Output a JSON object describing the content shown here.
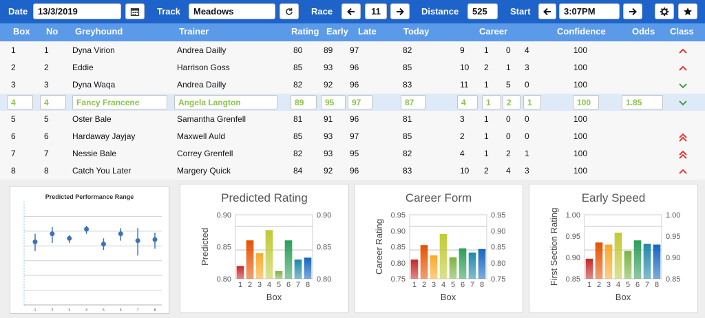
{
  "toolbar": {
    "date_label": "Date",
    "date_value": "13/3/2019",
    "track_label": "Track",
    "track_value": "Meadows",
    "race_label": "Race",
    "race_value": "11",
    "distance_label": "Distance",
    "distance_value": "525",
    "start_label": "Start",
    "start_value": "3:07PM",
    "icons": [
      "calendar-icon",
      "refresh-icon",
      "arrow-left-icon",
      "arrow-right-icon",
      "gear-icon",
      "star-icon"
    ]
  },
  "table": {
    "headers": {
      "box": "Box",
      "no": "No",
      "greyhound": "Greyhound",
      "trainer": "Trainer",
      "rating": "Rating",
      "early": "Early",
      "late": "Late",
      "today": "Today",
      "career": "Career",
      "confidence": "Confidence",
      "odds": "Odds",
      "class": "Class"
    },
    "rows": [
      {
        "box": "1",
        "no": "1",
        "greyhound": "Dyna Virion",
        "trainer": "Andrea Dailly",
        "rating": "80",
        "early": "89",
        "late": "97",
        "today": "82",
        "c1": "9",
        "c2": "1",
        "c3": "0",
        "c4": "4",
        "confidence": "100",
        "odds": "",
        "cls": "up"
      },
      {
        "box": "2",
        "no": "2",
        "greyhound": "Eddie",
        "trainer": "Harrison Goss",
        "rating": "85",
        "early": "93",
        "late": "96",
        "today": "85",
        "c1": "10",
        "c2": "2",
        "c3": "1",
        "c4": "3",
        "confidence": "100",
        "odds": "",
        "cls": "up"
      },
      {
        "box": "3",
        "no": "3",
        "greyhound": "Dyna Waqa",
        "trainer": "Andrea Dailly",
        "rating": "82",
        "early": "92",
        "late": "96",
        "today": "83",
        "c1": "11",
        "c2": "1",
        "c3": "5",
        "c4": "0",
        "confidence": "100",
        "odds": "",
        "cls": "down"
      },
      {
        "box": "4",
        "no": "4",
        "greyhound": "Fancy Francene",
        "trainer": "Angela Langton",
        "rating": "89",
        "early": "95",
        "late": "97",
        "today": "87",
        "c1": "4",
        "c2": "1",
        "c3": "2",
        "c4": "1",
        "confidence": "100",
        "odds": "1.85",
        "cls": "down"
      },
      {
        "box": "5",
        "no": "5",
        "greyhound": "Oster Bale",
        "trainer": "Samantha Grenfell",
        "rating": "81",
        "early": "91",
        "late": "96",
        "today": "81",
        "c1": "3",
        "c2": "1",
        "c3": "0",
        "c4": "0",
        "confidence": "100",
        "odds": "",
        "cls": "none"
      },
      {
        "box": "6",
        "no": "6",
        "greyhound": "Hardaway Jayjay",
        "trainer": "Maxwell Auld",
        "rating": "85",
        "early": "93",
        "late": "97",
        "today": "85",
        "c1": "2",
        "c2": "1",
        "c3": "0",
        "c4": "0",
        "confidence": "100",
        "odds": "",
        "cls": "double-up"
      },
      {
        "box": "7",
        "no": "7",
        "greyhound": "Nessie Bale",
        "trainer": "Correy Grenfell",
        "rating": "82",
        "early": "93",
        "late": "95",
        "today": "82",
        "c1": "4",
        "c2": "1",
        "c3": "2",
        "c4": "1",
        "confidence": "100",
        "odds": "",
        "cls": "double-up"
      },
      {
        "box": "8",
        "no": "8",
        "greyhound": "Catch You Later",
        "trainer": "Margery Quick",
        "rating": "84",
        "early": "92",
        "late": "96",
        "today": "83",
        "c1": "10",
        "c2": "2",
        "c3": "4",
        "c4": "3",
        "confidence": "100",
        "odds": "",
        "cls": "up"
      }
    ],
    "selected_row": 3
  },
  "colors": {
    "toolbar": "#1e63c9",
    "header": "#5a9ae8",
    "selected_text": "#8bc34a",
    "arrow_up": "#e53935",
    "arrow_down": "#43a047"
  },
  "chart_data": [
    {
      "type": "scatter",
      "title": "Predicted Performance Range",
      "x": [
        1,
        2,
        3,
        4,
        5,
        6,
        7,
        8
      ],
      "y": [
        0.55,
        0.62,
        0.58,
        0.66,
        0.53,
        0.62,
        0.56,
        0.57
      ],
      "err_low": [
        0.47,
        0.54,
        0.54,
        0.62,
        0.48,
        0.56,
        0.43,
        0.49
      ],
      "err_high": [
        0.62,
        0.68,
        0.61,
        0.69,
        0.58,
        0.67,
        0.67,
        0.63
      ],
      "ylim": [
        0,
        0.9
      ],
      "grid": true,
      "error_bars": true
    },
    {
      "type": "bar",
      "title": "Predicted Rating",
      "categories": [
        "1",
        "2",
        "3",
        "4",
        "5",
        "6",
        "7",
        "8"
      ],
      "values": [
        0.82,
        0.86,
        0.84,
        0.876,
        0.812,
        0.86,
        0.83,
        0.833
      ],
      "xlabel": "Box",
      "ylabel": "Predicted",
      "ylim": [
        0.8,
        0.9
      ],
      "yticks": [
        "0.80",
        "0.85",
        "0.90"
      ],
      "secondary_axis": true,
      "grid": true
    },
    {
      "type": "bar",
      "title": "Career Form",
      "categories": [
        "1",
        "2",
        "3",
        "4",
        "5",
        "6",
        "7",
        "8"
      ],
      "values": [
        0.81,
        0.855,
        0.823,
        0.89,
        0.817,
        0.845,
        0.832,
        0.843
      ],
      "xlabel": "Box",
      "ylabel": "Career Rating",
      "ylim": [
        0.75,
        0.95
      ],
      "yticks": [
        "0.75",
        "0.80",
        "0.85",
        "0.90",
        "0.95"
      ],
      "secondary_axis": true,
      "grid": true
    },
    {
      "type": "bar",
      "title": "Early Speed",
      "categories": [
        "1",
        "2",
        "3",
        "4",
        "5",
        "6",
        "7",
        "8"
      ],
      "values": [
        0.897,
        0.935,
        0.93,
        0.958,
        0.915,
        0.94,
        0.932,
        0.93
      ],
      "xlabel": "Box",
      "ylabel": "First Section Rating",
      "ylim": [
        0.85,
        1.0
      ],
      "yticks": [
        "0.85",
        "0.90",
        "0.95",
        "1.00"
      ],
      "secondary_axis": true,
      "grid": true
    }
  ]
}
